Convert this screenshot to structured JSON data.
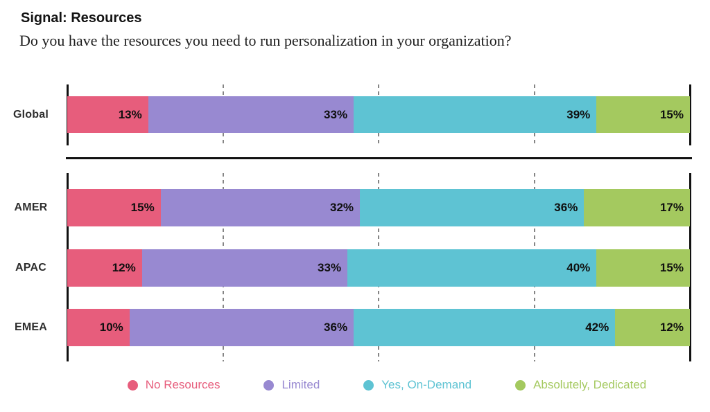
{
  "header": {
    "title": "Signal: Resources",
    "question": "Do you have the resources you need to run personalization in your organization?"
  },
  "chart_data": {
    "type": "bar",
    "stacked": true,
    "orientation": "horizontal",
    "title": "Signal: Resources",
    "subtitle": "Do you have the resources you need to run personalization in your organization?",
    "categories": [
      "Global",
      "AMER",
      "APAC",
      "EMEA"
    ],
    "series": [
      {
        "name": "No Resources",
        "color": "#E75D7C",
        "values": [
          13,
          15,
          12,
          10
        ]
      },
      {
        "name": "Limited",
        "color": "#9889D1",
        "values": [
          33,
          32,
          33,
          36
        ]
      },
      {
        "name": "Yes, On-Demand",
        "color": "#5EC3D3",
        "values": [
          39,
          36,
          40,
          42
        ]
      },
      {
        "name": "Absolutely, Dedicated",
        "color": "#A4C95F",
        "values": [
          15,
          17,
          15,
          12
        ]
      }
    ],
    "value_suffix": "%",
    "xlim": [
      0,
      100
    ],
    "gridlines_percent": [
      25,
      50,
      75
    ],
    "grid": "dashed-vertical",
    "axis_color": "#111111",
    "gridline_color": "#858585",
    "groups": [
      [
        "Global"
      ],
      [
        "AMER",
        "APAC",
        "EMEA"
      ]
    ],
    "legend_position": "bottom"
  }
}
